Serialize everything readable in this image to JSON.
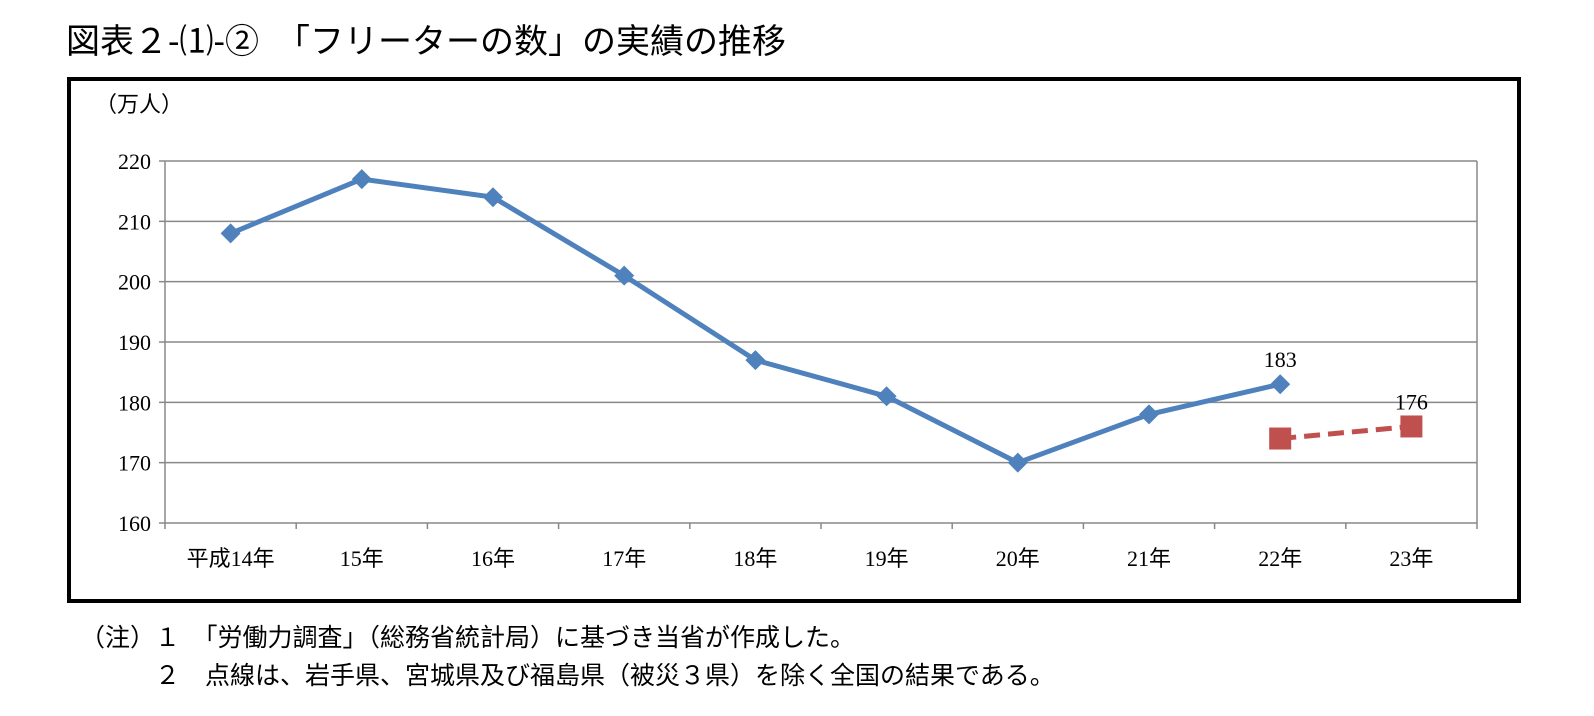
{
  "title": "図表２-⑴-②　「フリーターの数」の実績の推移",
  "chart_data": {
    "type": "line",
    "title": "図表２-⑴-②　「フリーターの数」の実績の推移",
    "ylabel": "（万人）",
    "xlabel": "",
    "categories": [
      "平成14年",
      "15年",
      "16年",
      "17年",
      "18年",
      "19年",
      "20年",
      "21年",
      "22年",
      "23年"
    ],
    "ylim": [
      160,
      220
    ],
    "yticks": [
      160,
      170,
      180,
      190,
      200,
      210,
      220
    ],
    "grid": true,
    "series": [
      {
        "values": [
          208,
          217,
          214,
          201,
          187,
          181,
          170,
          178,
          183,
          null
        ],
        "color": "#4F81BD",
        "marker": "diamond",
        "style": "solid",
        "data_labels": {
          "8": "183"
        }
      },
      {
        "values": [
          null,
          null,
          null,
          null,
          null,
          null,
          null,
          null,
          174,
          176
        ],
        "color": "#C0504D",
        "marker": "square",
        "style": "dashed",
        "data_labels": {
          "9": "176"
        }
      }
    ]
  },
  "notes": [
    "（注）１　「労働力調査」（総務省統計局）に基づき当省が作成した。",
    "　　　２　点線は、岩手県、宮城県及び福島県（被災３県）を除く全国の結果である。"
  ]
}
